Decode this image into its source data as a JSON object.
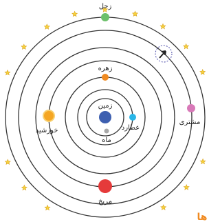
{
  "bodies": [
    {
      "label": "زمین"
    },
    {
      "label": "ماه"
    },
    {
      "label": "عطارد"
    },
    {
      "label": "زهره"
    },
    {
      "label": "خورشید"
    },
    {
      "label": "مریخ"
    },
    {
      "label": "مشتری"
    },
    {
      "label": "زحل"
    }
  ],
  "corner_text": "ها"
}
